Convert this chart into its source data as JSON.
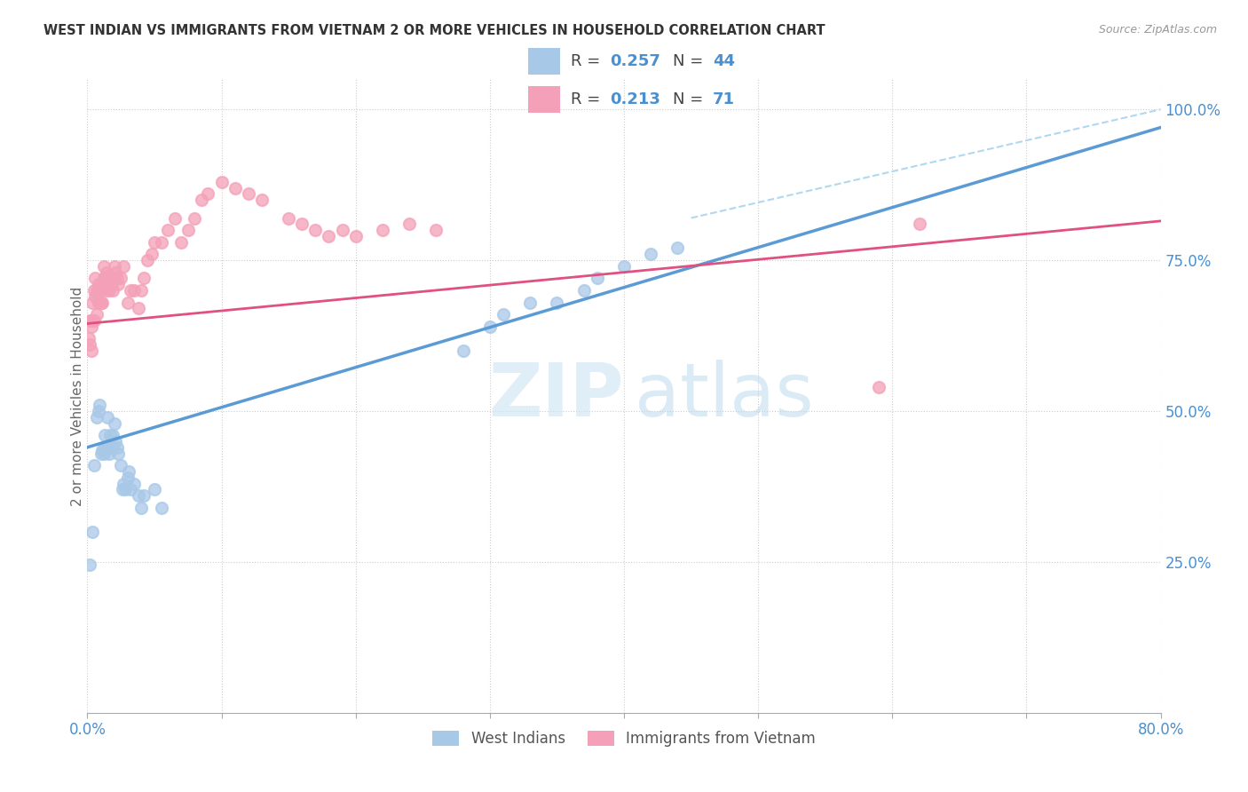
{
  "title": "WEST INDIAN VS IMMIGRANTS FROM VIETNAM 2 OR MORE VEHICLES IN HOUSEHOLD CORRELATION CHART",
  "source": "Source: ZipAtlas.com",
  "ylabel": "2 or more Vehicles in Household",
  "legend_label1": "West Indians",
  "legend_label2": "Immigrants from Vietnam",
  "R1": 0.257,
  "N1": 44,
  "R2": 0.213,
  "N2": 71,
  "color_blue": "#a8c8e8",
  "color_pink": "#f4a0b8",
  "color_blue_text": "#4a90d0",
  "color_blue_line": "#5b9bd5",
  "color_pink_line": "#e05080",
  "color_dashed": "#b0d8f0",
  "watermark_zip": "ZIP",
  "watermark_atlas": "atlas",
  "west_indians_x": [
    0.002,
    0.004,
    0.005,
    0.007,
    0.008,
    0.009,
    0.01,
    0.011,
    0.012,
    0.013,
    0.013,
    0.014,
    0.015,
    0.016,
    0.017,
    0.018,
    0.019,
    0.02,
    0.021,
    0.022,
    0.023,
    0.025,
    0.026,
    0.027,
    0.028,
    0.03,
    0.031,
    0.032,
    0.035,
    0.038,
    0.04,
    0.042,
    0.05,
    0.055,
    0.28,
    0.3,
    0.31,
    0.33,
    0.35,
    0.37,
    0.38,
    0.4,
    0.42,
    0.44
  ],
  "west_indians_y": [
    0.245,
    0.3,
    0.41,
    0.49,
    0.5,
    0.51,
    0.43,
    0.435,
    0.43,
    0.44,
    0.46,
    0.44,
    0.49,
    0.43,
    0.46,
    0.44,
    0.46,
    0.48,
    0.45,
    0.44,
    0.43,
    0.41,
    0.37,
    0.38,
    0.37,
    0.39,
    0.4,
    0.37,
    0.38,
    0.36,
    0.34,
    0.36,
    0.37,
    0.34,
    0.6,
    0.64,
    0.66,
    0.68,
    0.68,
    0.7,
    0.72,
    0.74,
    0.76,
    0.77
  ],
  "vietnam_x": [
    0.001,
    0.002,
    0.002,
    0.003,
    0.003,
    0.004,
    0.004,
    0.005,
    0.005,
    0.006,
    0.006,
    0.007,
    0.007,
    0.008,
    0.008,
    0.009,
    0.009,
    0.01,
    0.01,
    0.011,
    0.011,
    0.012,
    0.012,
    0.013,
    0.013,
    0.014,
    0.014,
    0.015,
    0.015,
    0.016,
    0.017,
    0.018,
    0.019,
    0.02,
    0.021,
    0.022,
    0.023,
    0.025,
    0.027,
    0.03,
    0.032,
    0.035,
    0.038,
    0.04,
    0.042,
    0.045,
    0.048,
    0.05,
    0.055,
    0.06,
    0.065,
    0.07,
    0.075,
    0.08,
    0.085,
    0.09,
    0.1,
    0.11,
    0.12,
    0.13,
    0.15,
    0.16,
    0.17,
    0.18,
    0.19,
    0.2,
    0.22,
    0.24,
    0.26,
    0.59,
    0.62
  ],
  "vietnam_y": [
    0.62,
    0.61,
    0.65,
    0.6,
    0.64,
    0.65,
    0.68,
    0.65,
    0.7,
    0.69,
    0.72,
    0.7,
    0.66,
    0.68,
    0.71,
    0.7,
    0.68,
    0.68,
    0.7,
    0.68,
    0.71,
    0.72,
    0.74,
    0.72,
    0.71,
    0.7,
    0.73,
    0.72,
    0.71,
    0.7,
    0.72,
    0.71,
    0.7,
    0.74,
    0.73,
    0.72,
    0.71,
    0.72,
    0.74,
    0.68,
    0.7,
    0.7,
    0.67,
    0.7,
    0.72,
    0.75,
    0.76,
    0.78,
    0.78,
    0.8,
    0.82,
    0.78,
    0.8,
    0.82,
    0.85,
    0.86,
    0.88,
    0.87,
    0.86,
    0.85,
    0.82,
    0.81,
    0.8,
    0.79,
    0.8,
    0.79,
    0.8,
    0.81,
    0.8,
    0.54,
    0.81
  ],
  "blue_line_x": [
    0.0,
    0.8
  ],
  "blue_line_y": [
    0.44,
    0.97
  ],
  "pink_line_x": [
    0.0,
    0.8
  ],
  "pink_line_y": [
    0.645,
    0.815
  ],
  "dashed_line_x": [
    0.45,
    0.8
  ],
  "dashed_line_y": [
    0.82,
    1.0
  ],
  "xlim": [
    0.0,
    0.8
  ],
  "ylim": [
    0.0,
    1.05
  ],
  "yticks": [
    0.25,
    0.5,
    0.75,
    1.0
  ],
  "ytick_labels": [
    "25.0%",
    "50.0%",
    "75.0%",
    "100.0%"
  ],
  "xtick_left_label": "0.0%",
  "xtick_right_label": "80.0%"
}
